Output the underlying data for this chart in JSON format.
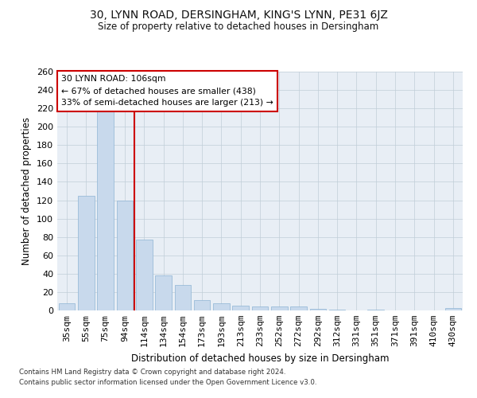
{
  "title_line1": "30, LYNN ROAD, DERSINGHAM, KING'S LYNN, PE31 6JZ",
  "title_line2": "Size of property relative to detached houses in Dersingham",
  "xlabel": "Distribution of detached houses by size in Dersingham",
  "ylabel": "Number of detached properties",
  "categories": [
    "35sqm",
    "55sqm",
    "75sqm",
    "94sqm",
    "114sqm",
    "134sqm",
    "154sqm",
    "173sqm",
    "193sqm",
    "213sqm",
    "233sqm",
    "252sqm",
    "272sqm",
    "292sqm",
    "312sqm",
    "331sqm",
    "351sqm",
    "371sqm",
    "391sqm",
    "410sqm",
    "430sqm"
  ],
  "values": [
    8,
    125,
    218,
    120,
    77,
    38,
    28,
    11,
    8,
    5,
    4,
    4,
    4,
    2,
    1,
    0,
    1,
    0,
    0,
    0,
    3
  ],
  "bar_color": "#c8d9ec",
  "bar_edge_color": "#8fb4d4",
  "ref_line_color": "#cc0000",
  "annotation_text": "30 LYNN ROAD: 106sqm\n← 67% of detached houses are smaller (438)\n33% of semi-detached houses are larger (213) →",
  "annotation_box_color": "#ffffff",
  "annotation_box_edge_color": "#cc0000",
  "footnote1": "Contains HM Land Registry data © Crown copyright and database right 2024.",
  "footnote2": "Contains public sector information licensed under the Open Government Licence v3.0.",
  "ylim": [
    0,
    260
  ],
  "yticks": [
    0,
    20,
    40,
    60,
    80,
    100,
    120,
    140,
    160,
    180,
    200,
    220,
    240,
    260
  ],
  "background_color": "#ffffff",
  "plot_bg_color": "#e8eef5",
  "grid_color": "#c0cdd8"
}
